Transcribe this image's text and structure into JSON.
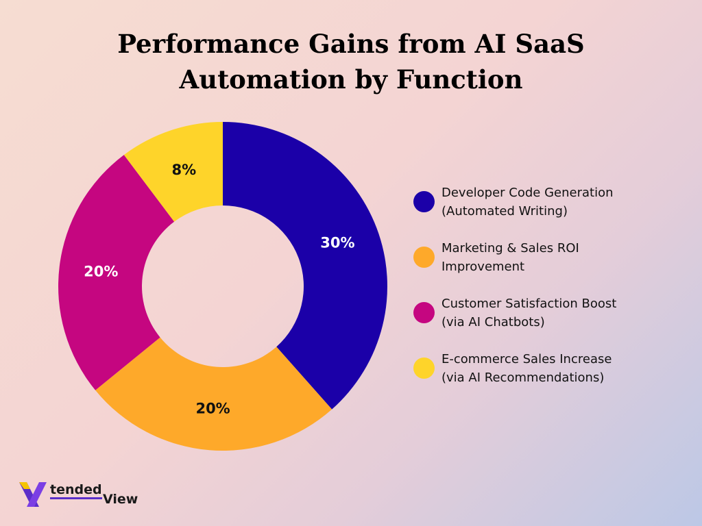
{
  "title_line1": "Performance Gains from AI SaaS",
  "title_line2": "Automation by Function",
  "chart_data": {
    "type": "pie",
    "donut": true,
    "title": "Performance Gains from AI SaaS Automation by Function",
    "legend_position": "right",
    "slices": [
      {
        "label_line1": "Developer Code Generation",
        "label_line2": "(Automated Writing)",
        "value": 30,
        "display": "30%",
        "color": "#1b00a8"
      },
      {
        "label_line1": "Marketing & Sales ROI",
        "label_line2": "Improvement",
        "value": 20,
        "display": "20%",
        "color": "#fea92a"
      },
      {
        "label_line1": "Customer Satisfaction Boost",
        "label_line2": "(via AI Chatbots)",
        "value": 20,
        "display": "20%",
        "color": "#c50680"
      },
      {
        "label_line1": "E-commerce Sales Increase",
        "label_line2": "(via AI Recommendations)",
        "value": 8,
        "display": "8%",
        "color": "#fed42a"
      }
    ]
  },
  "logo": {
    "mark_icon": "x-logo-icon",
    "text_part1": "tended",
    "text_part2": "View",
    "accent_color": "#5b2ec9"
  }
}
